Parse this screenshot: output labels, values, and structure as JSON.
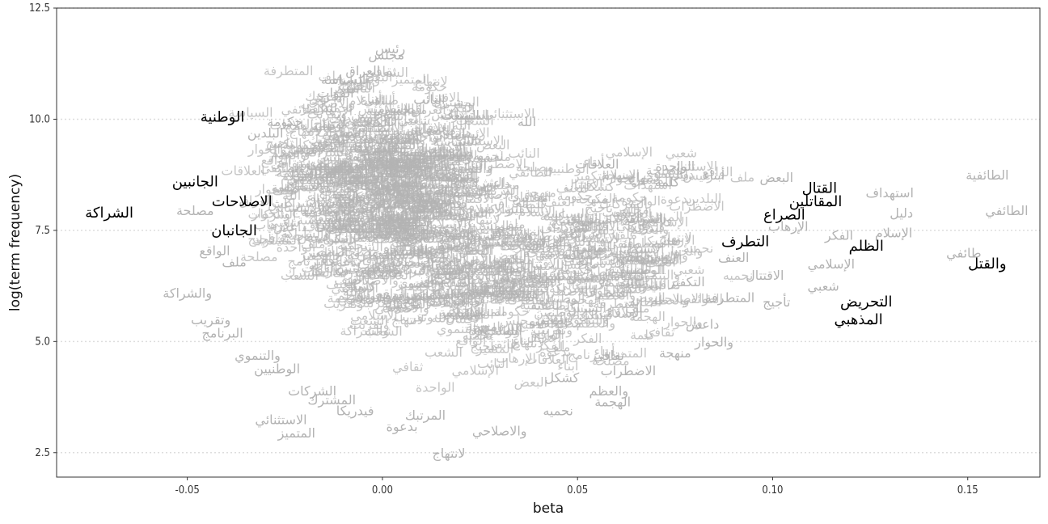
{
  "chart_data": {
    "type": "scatter",
    "title": "",
    "xlabel": "beta",
    "ylabel": "log(term frequency)",
    "xlim": [
      -0.0835,
      0.1685
    ],
    "ylim": [
      1.95,
      12.5
    ],
    "x_ticks": [
      -0.05,
      0.0,
      0.05,
      0.1,
      0.15
    ],
    "x_tick_labels": [
      "-0.05",
      "0.00",
      "0.05",
      "0.10",
      "0.15"
    ],
    "y_ticks": [
      2.5,
      5.0,
      7.5,
      10.0,
      12.5
    ],
    "y_tick_labels": [
      "2.5",
      "5.0",
      "7.5",
      "10.0",
      "12.5"
    ],
    "grid": "horizontal dotted at y ticks",
    "colors": {
      "background_terms": "#b3b3b3",
      "highlighted_terms": "#000000",
      "grid": "#dddddd",
      "axis": "#333333"
    },
    "highlighted_terms": [
      {
        "label": "الشراكة",
        "x": -0.07,
        "y": 7.9
      },
      {
        "label": "الوطنية",
        "x": -0.041,
        "y": 10.05
      },
      {
        "label": "الجانبين",
        "x": -0.048,
        "y": 8.6
      },
      {
        "label": "الاصلاحات",
        "x": -0.036,
        "y": 8.15
      },
      {
        "label": "الجانبان",
        "x": -0.038,
        "y": 7.5
      },
      {
        "label": "القتال",
        "x": 0.112,
        "y": 8.45
      },
      {
        "label": "المقاتلين",
        "x": 0.111,
        "y": 8.15
      },
      {
        "label": "الصراع",
        "x": 0.103,
        "y": 7.85
      },
      {
        "label": "التطرف",
        "x": 0.093,
        "y": 7.25
      },
      {
        "label": "الظلم",
        "x": 0.124,
        "y": 7.15
      },
      {
        "label": "والقتل",
        "x": 0.155,
        "y": 6.75
      },
      {
        "label": "التحريض",
        "x": 0.124,
        "y": 5.9
      },
      {
        "label": "المذهبي",
        "x": 0.122,
        "y": 5.5
      }
    ],
    "background_terms": [
      {
        "label": "رئيس",
        "x": 0.002,
        "y": 11.6
      },
      {
        "label": "مجلس",
        "x": 0.001,
        "y": 11.45
      },
      {
        "label": "العراق",
        "x": -0.005,
        "y": 11.1
      },
      {
        "label": "السياسة",
        "x": -0.01,
        "y": 10.9
      },
      {
        "label": "القوات",
        "x": -0.012,
        "y": 10.6
      },
      {
        "label": "النائب",
        "x": 0.012,
        "y": 10.45
      },
      {
        "label": "الشعب",
        "x": 0.02,
        "y": 10.1
      },
      {
        "label": "حكومة",
        "x": -0.025,
        "y": 9.95
      },
      {
        "label": "الله",
        "x": 0.037,
        "y": 9.95
      },
      {
        "label": "البلدين",
        "x": -0.03,
        "y": 9.7
      },
      {
        "label": "العلاقات",
        "x": 0.055,
        "y": 9.0
      },
      {
        "label": "أبناء",
        "x": 0.085,
        "y": 8.75
      },
      {
        "label": "الواحدة",
        "x": 0.075,
        "y": 8.95
      },
      {
        "label": "كلمة",
        "x": 0.073,
        "y": 8.6
      },
      {
        "label": "البعض",
        "x": 0.101,
        "y": 8.7
      },
      {
        "label": "الطائفية",
        "x": 0.155,
        "y": 8.75
      },
      {
        "label": "استهداف",
        "x": 0.13,
        "y": 8.35
      },
      {
        "label": "دليل",
        "x": 0.133,
        "y": 7.9
      },
      {
        "label": "الطائفي",
        "x": 0.16,
        "y": 7.95
      },
      {
        "label": "الإسلام",
        "x": 0.131,
        "y": 7.45
      },
      {
        "label": "الفكر",
        "x": 0.117,
        "y": 7.4
      },
      {
        "label": "طائفي",
        "x": 0.149,
        "y": 7.0
      },
      {
        "label": "شعبي",
        "x": 0.113,
        "y": 6.25
      },
      {
        "label": "مصلحة",
        "x": -0.048,
        "y": 7.95
      },
      {
        "label": "الواقع",
        "x": -0.043,
        "y": 7.05
      },
      {
        "label": "ملف",
        "x": -0.038,
        "y": 6.8
      },
      {
        "label": "والشراكة",
        "x": -0.05,
        "y": 6.1
      },
      {
        "label": "وتقريب",
        "x": -0.044,
        "y": 5.5
      },
      {
        "label": "البرنامج",
        "x": -0.041,
        "y": 5.2
      },
      {
        "label": "والتنموي",
        "x": -0.032,
        "y": 4.7
      },
      {
        "label": "الوطنيين",
        "x": -0.027,
        "y": 4.4
      },
      {
        "label": "الشركات",
        "x": -0.018,
        "y": 3.9
      },
      {
        "label": "المشترك",
        "x": -0.013,
        "y": 3.7
      },
      {
        "label": "فيدريكا",
        "x": -0.007,
        "y": 3.45
      },
      {
        "label": "الاستثنائي",
        "x": -0.026,
        "y": 3.25
      },
      {
        "label": "المتميز",
        "x": -0.022,
        "y": 2.95
      },
      {
        "label": "المرتبك",
        "x": 0.011,
        "y": 3.35
      },
      {
        "label": "بدعوة",
        "x": 0.005,
        "y": 3.1
      },
      {
        "label": "لانتهاج",
        "x": 0.017,
        "y": 2.5
      },
      {
        "label": "والاصلاحي",
        "x": 0.03,
        "y": 3.0
      },
      {
        "label": "نحميه",
        "x": 0.045,
        "y": 3.45
      },
      {
        "label": "والعظم",
        "x": 0.058,
        "y": 3.9
      },
      {
        "label": "الهجمة",
        "x": 0.059,
        "y": 3.65
      },
      {
        "label": "كشكل",
        "x": 0.046,
        "y": 4.2
      },
      {
        "label": "الاضطراب",
        "x": 0.063,
        "y": 4.35
      },
      {
        "label": "منهجة",
        "x": 0.075,
        "y": 4.75
      },
      {
        "label": "ثقافي",
        "x": 0.058,
        "y": 4.7
      },
      {
        "label": "داعش",
        "x": 0.082,
        "y": 5.4
      },
      {
        "label": "التكفير",
        "x": 0.078,
        "y": 6.35
      },
      {
        "label": "تأجيج",
        "x": 0.101,
        "y": 5.9
      },
      {
        "label": "الاقتتال",
        "x": 0.098,
        "y": 6.5
      },
      {
        "label": "العنف",
        "x": 0.09,
        "y": 6.9
      },
      {
        "label": "الإرهاب",
        "x": 0.104,
        "y": 7.6
      },
      {
        "label": "الإسلامي",
        "x": 0.115,
        "y": 6.75
      },
      {
        "label": "المتطرفة",
        "x": 0.089,
        "y": 6.0
      },
      {
        "label": "والحوار",
        "x": 0.085,
        "y": 5.0
      }
    ]
  }
}
